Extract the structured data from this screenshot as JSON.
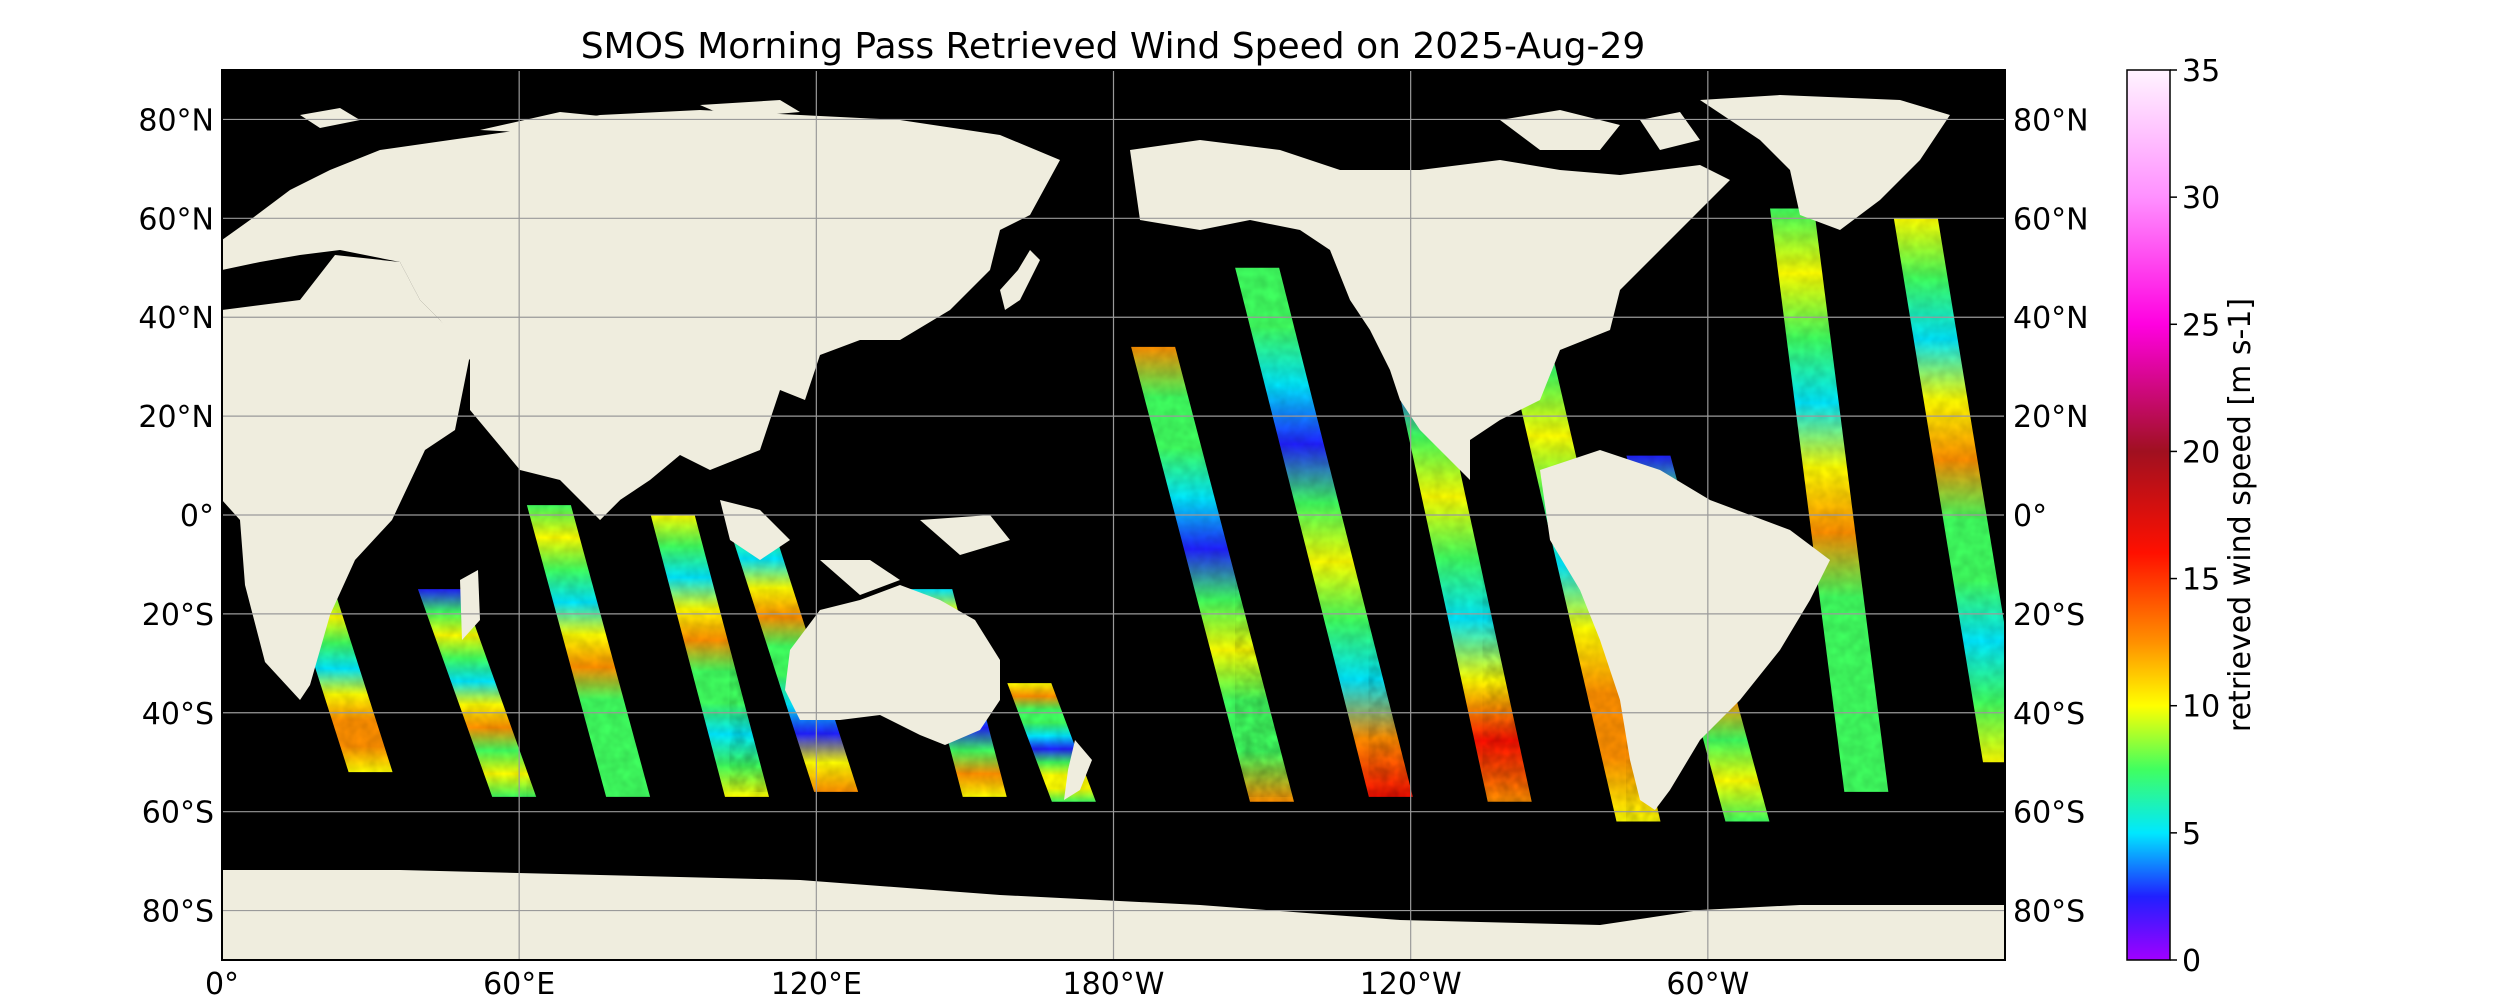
{
  "title": "SMOS Morning Pass Retrieved Wind Speed on 2025-Aug-29",
  "colors": {
    "ocean": "#000000",
    "land": "#efedde",
    "grid": "#9a9a9a",
    "frame": "#000000"
  },
  "map": {
    "lon_range": [
      0,
      360
    ],
    "lat_range": [
      -90,
      90
    ],
    "grid": true,
    "lat_labels": [
      "80°N",
      "60°N",
      "40°N",
      "20°N",
      "0°",
      "20°S",
      "40°S",
      "60°S",
      "80°S"
    ],
    "lat_values": [
      80,
      60,
      40,
      20,
      0,
      -20,
      -40,
      -60,
      -80
    ],
    "lon_labels": [
      "0°",
      "60°E",
      "120°E",
      "180°W",
      "120°W",
      "60°W"
    ],
    "lon_values": [
      0,
      60,
      120,
      180,
      240,
      300
    ]
  },
  "colorbar": {
    "label": "retrieved wind speed [m s-1]",
    "min": 0,
    "max": 35,
    "ticks": [
      "0",
      "5",
      "10",
      "15",
      "20",
      "25",
      "30",
      "35"
    ],
    "tick_values": [
      0,
      5,
      10,
      15,
      20,
      25,
      30,
      35
    ],
    "stops": [
      {
        "v": 0,
        "c": "#a000ff"
      },
      {
        "v": 2.5,
        "c": "#2020ff"
      },
      {
        "v": 5,
        "c": "#00e8ff"
      },
      {
        "v": 7.5,
        "c": "#40ff60"
      },
      {
        "v": 10,
        "c": "#ffff00"
      },
      {
        "v": 12.5,
        "c": "#ff9000"
      },
      {
        "v": 16,
        "c": "#ff1000"
      },
      {
        "v": 20,
        "c": "#a01020"
      },
      {
        "v": 25,
        "c": "#ff00e0"
      },
      {
        "v": 30,
        "c": "#ff90ff"
      },
      {
        "v": 35,
        "c": "#fff4ff"
      }
    ]
  },
  "swaths": [
    {
      "lon_top": 15,
      "lat_top": -5,
      "lon_bot": 30,
      "lat_bot": -52
    },
    {
      "lon_top": 44,
      "lat_top": -15,
      "lon_bot": 59,
      "lat_bot": -57
    },
    {
      "lon_top": 66,
      "lat_top": 2,
      "lon_bot": 82,
      "lat_bot": -57
    },
    {
      "lon_top": 91,
      "lat_top": 0,
      "lon_bot": 106,
      "lat_bot": -57
    },
    {
      "lon_top": 107,
      "lat_top": -3,
      "lon_bot": 124,
      "lat_bot": -56
    },
    {
      "lon_top": 143,
      "lat_top": -15,
      "lon_bot": 154,
      "lat_bot": -57
    },
    {
      "lon_top": 163,
      "lat_top": -34,
      "lon_bot": 172,
      "lat_bot": -58
    },
    {
      "lon_top": 188,
      "lat_top": 34,
      "lon_bot": 212,
      "lat_bot": -58
    },
    {
      "lon_top": 209,
      "lat_top": 50,
      "lon_bot": 236,
      "lat_bot": -57
    },
    {
      "lon_top": 236,
      "lat_top": 53,
      "lon_bot": 260,
      "lat_bot": -58
    },
    {
      "lon_top": 259,
      "lat_top": 55,
      "lon_bot": 286,
      "lat_bot": -62
    },
    {
      "lon_top": 288,
      "lat_top": 12,
      "lon_bot": 308,
      "lat_bot": -62
    },
    {
      "lon_top": 317,
      "lat_top": 62,
      "lon_bot": 332,
      "lat_bot": -56
    },
    {
      "lon_top": 342,
      "lat_top": 60,
      "lon_bot": 360,
      "lat_bot": -50
    }
  ]
}
